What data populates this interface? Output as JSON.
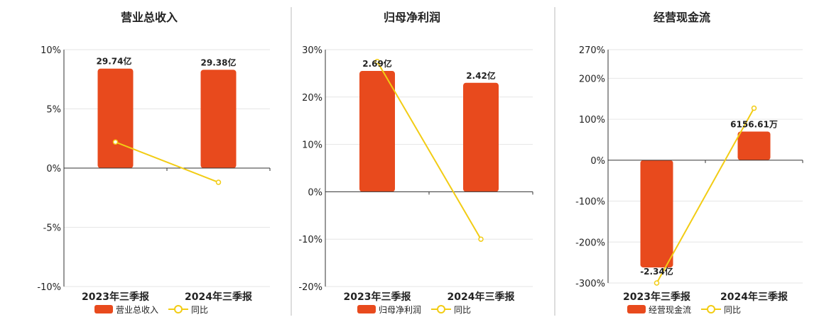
{
  "colors": {
    "bar": "#E84A1D",
    "line": "#F2CC14",
    "grid": "#E6E6E6",
    "axis": "#333333",
    "divider": "#BBBBBB",
    "text": "#222222"
  },
  "legend": {
    "line_label": "同比"
  },
  "chart_data": [
    {
      "type": "bar",
      "title": "营业总收入",
      "categories": [
        "2023年三季报",
        "2024年三季报"
      ],
      "series": [
        {
          "name": "营业总收入",
          "kind": "bar",
          "values": [
            8.4,
            8.3
          ],
          "labels": [
            "29.74亿",
            "29.38亿"
          ]
        },
        {
          "name": "同比",
          "kind": "line",
          "values": [
            2.2,
            -1.2
          ]
        }
      ],
      "yticks": [
        "10%",
        "5%",
        "0%",
        "-5%",
        "-10%"
      ],
      "ylim": [
        -10,
        10
      ],
      "grid": true,
      "legend_position": "bottom"
    },
    {
      "type": "bar",
      "title": "归母净利润",
      "categories": [
        "2023年三季报",
        "2024年三季报"
      ],
      "series": [
        {
          "name": "归母净利润",
          "kind": "bar",
          "values": [
            25.5,
            23.0
          ],
          "labels": [
            "2.69亿",
            "2.42亿"
          ]
        },
        {
          "name": "同比",
          "kind": "line",
          "values": [
            27.5,
            -10.0
          ]
        }
      ],
      "yticks": [
        "30%",
        "20%",
        "10%",
        "0%",
        "-10%",
        "-20%"
      ],
      "ylim": [
        -20,
        30
      ],
      "grid": true,
      "legend_position": "bottom"
    },
    {
      "type": "bar",
      "title": "经营现金流",
      "categories": [
        "2023年三季报",
        "2024年三季报"
      ],
      "series": [
        {
          "name": "经营现金流",
          "kind": "bar",
          "values": [
            -262,
            70
          ],
          "labels": [
            "-2.34亿",
            "6156.61万"
          ]
        },
        {
          "name": "同比",
          "kind": "line",
          "values": [
            -300,
            127
          ]
        }
      ],
      "yticks": [
        "270%",
        "200%",
        "100%",
        "0%",
        "-100%",
        "-200%",
        "-300%"
      ],
      "ylim": [
        -300,
        270
      ],
      "grid": true,
      "legend_position": "bottom"
    }
  ]
}
